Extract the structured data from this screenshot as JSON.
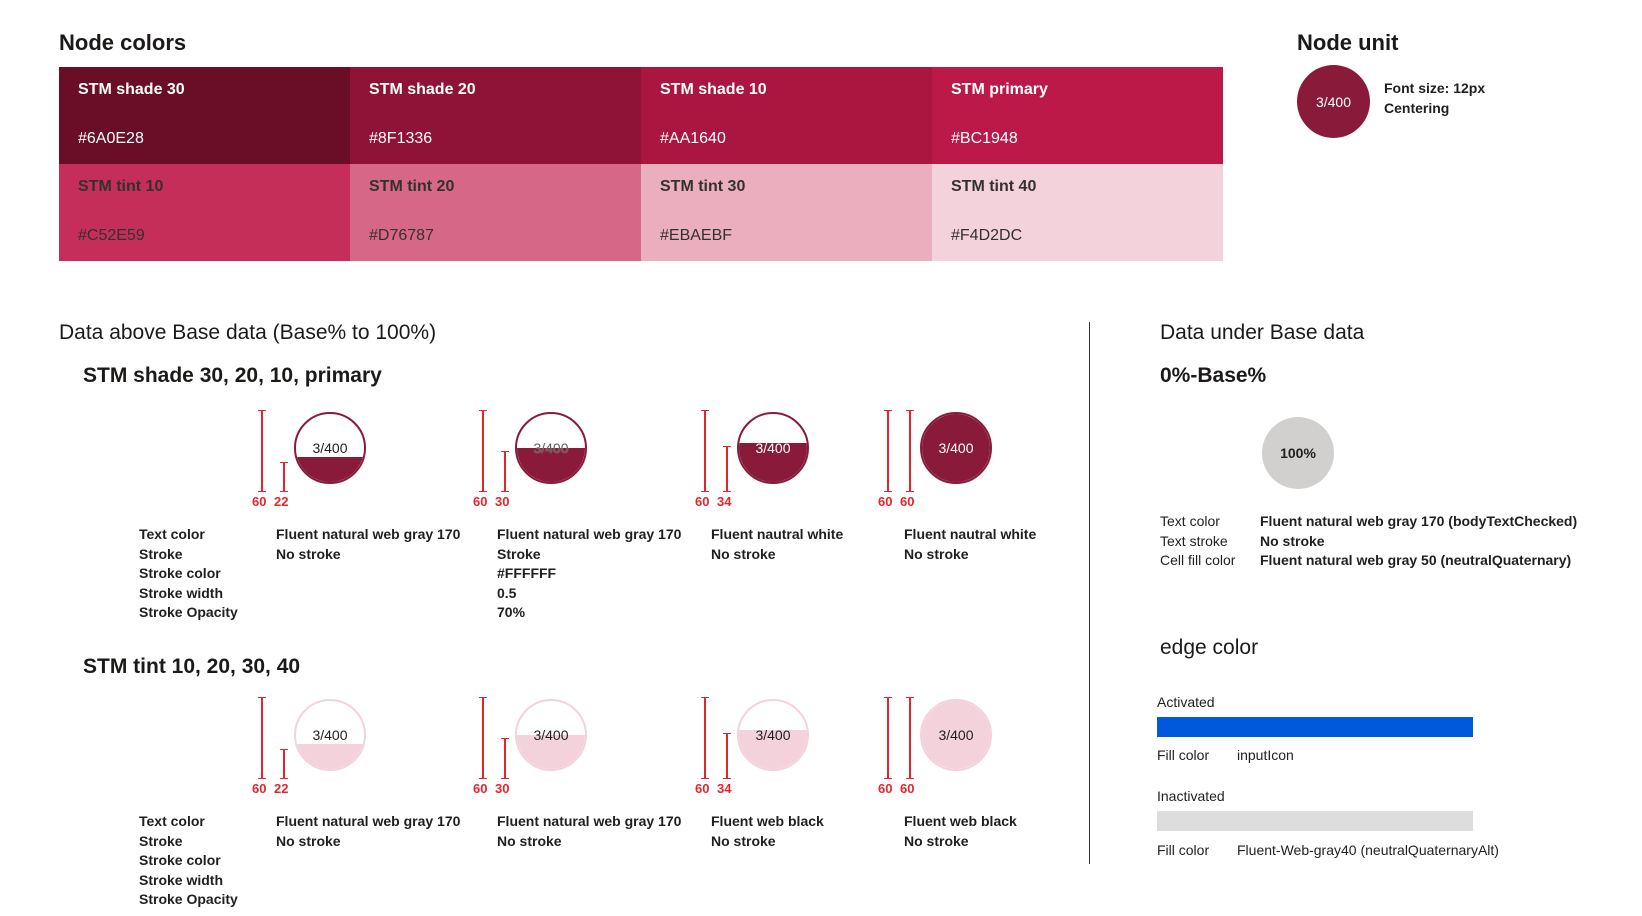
{
  "node_colors": {
    "title": "Node colors",
    "swatches": [
      {
        "name": "STM shade 30",
        "hex": "#6A0E28",
        "text": "#ffffff"
      },
      {
        "name": "STM shade 20",
        "hex": "#8F1336",
        "text": "#ffffff"
      },
      {
        "name": "STM shade 10",
        "hex": "#AA1640",
        "text": "#ffffff"
      },
      {
        "name": "STM primary",
        "hex": "#BC1948",
        "text": "#ffffff"
      },
      {
        "name": "STM tint 10",
        "hex": "#C52E59",
        "text": "#323130"
      },
      {
        "name": "STM tint 20",
        "hex": "#D76787",
        "text": "#323130"
      },
      {
        "name": "STM tint 30",
        "hex": "#EBAEBF",
        "text": "#323130"
      },
      {
        "name": "STM tint 40",
        "hex": "#F4D2DC",
        "text": "#323130"
      }
    ]
  },
  "node_unit": {
    "title": "Node unit",
    "label": "3/400",
    "font_size": "Font size: 12px",
    "centering": "Centering"
  },
  "above": {
    "title": "Data above Base data (Base% to 100%)",
    "shade": {
      "title": "STM shade 30, 20, 10, primary",
      "nodes": [
        {
          "label": "3/400",
          "fill_percent": 22,
          "m1": "60",
          "m2": "22",
          "text_color": "Fluent natural web gray 170",
          "stroke": "No stroke"
        },
        {
          "label": "3/400",
          "fill_percent": 30,
          "m1": "60",
          "m2": "30",
          "text_color": "Fluent natural web gray 170",
          "stroke": "Stroke",
          "stroke_color": "#FFFFFF",
          "stroke_width": "0.5",
          "stroke_opacity": "70%"
        },
        {
          "label": "3/400",
          "fill_percent": 34,
          "m1": "60",
          "m2": "34",
          "text_color": "Fluent nautral white",
          "stroke": "No stroke"
        },
        {
          "label": "3/400",
          "fill_percent": 60,
          "m1": "60",
          "m2": "60",
          "text_color": "Fluent nautral white",
          "stroke": "No stroke"
        }
      ]
    },
    "tint": {
      "title": "STM tint 10, 20, 30, 40",
      "nodes": [
        {
          "label": "3/400",
          "fill_percent": 22,
          "m1": "60",
          "m2": "22",
          "text_color": "Fluent natural web gray 170",
          "stroke": "No stroke"
        },
        {
          "label": "3/400",
          "fill_percent": 30,
          "m1": "60",
          "m2": "30",
          "text_color": "Fluent natural web gray 170",
          "stroke": "No stroke"
        },
        {
          "label": "3/400",
          "fill_percent": 34,
          "m1": "60",
          "m2": "34",
          "text_color": "Fluent web black",
          "stroke": "No stroke"
        },
        {
          "label": "3/400",
          "fill_percent": 60,
          "m1": "60",
          "m2": "60",
          "text_color": "Fluent web black",
          "stroke": "No stroke"
        }
      ]
    },
    "legend": {
      "text_color": "Text color",
      "stroke": "Stroke",
      "stroke_color": "Stroke color",
      "stroke_width": "Stroke width",
      "stroke_opacity": "Stroke Opacity"
    },
    "colors": {
      "shade": "#8A1A3A",
      "tint": "#F4D2DC"
    }
  },
  "under": {
    "title": "Data under Base data",
    "subtitle": "0%-Base%",
    "node_label": "100%",
    "rows": [
      {
        "k": "Text color",
        "v": "Fluent natural web gray 170 (bodyTextChecked)"
      },
      {
        "k": "Text stroke",
        "v": "No stroke"
      },
      {
        "k": "Cell fill color",
        "v": "Fluent natural web gray 50 (neutralQuaternary)"
      }
    ]
  },
  "edge": {
    "title": "edge color",
    "activated": {
      "label": "Activated",
      "fill_label": "Fill color",
      "fill_value": "inputIcon",
      "color": "#0058DB"
    },
    "inactivated": {
      "label": "Inactivated",
      "fill_label": "Fill color",
      "fill_value": "Fluent-Web-gray40 (neutralQuaternaryAlt)",
      "color": "#DDDDDD"
    }
  }
}
